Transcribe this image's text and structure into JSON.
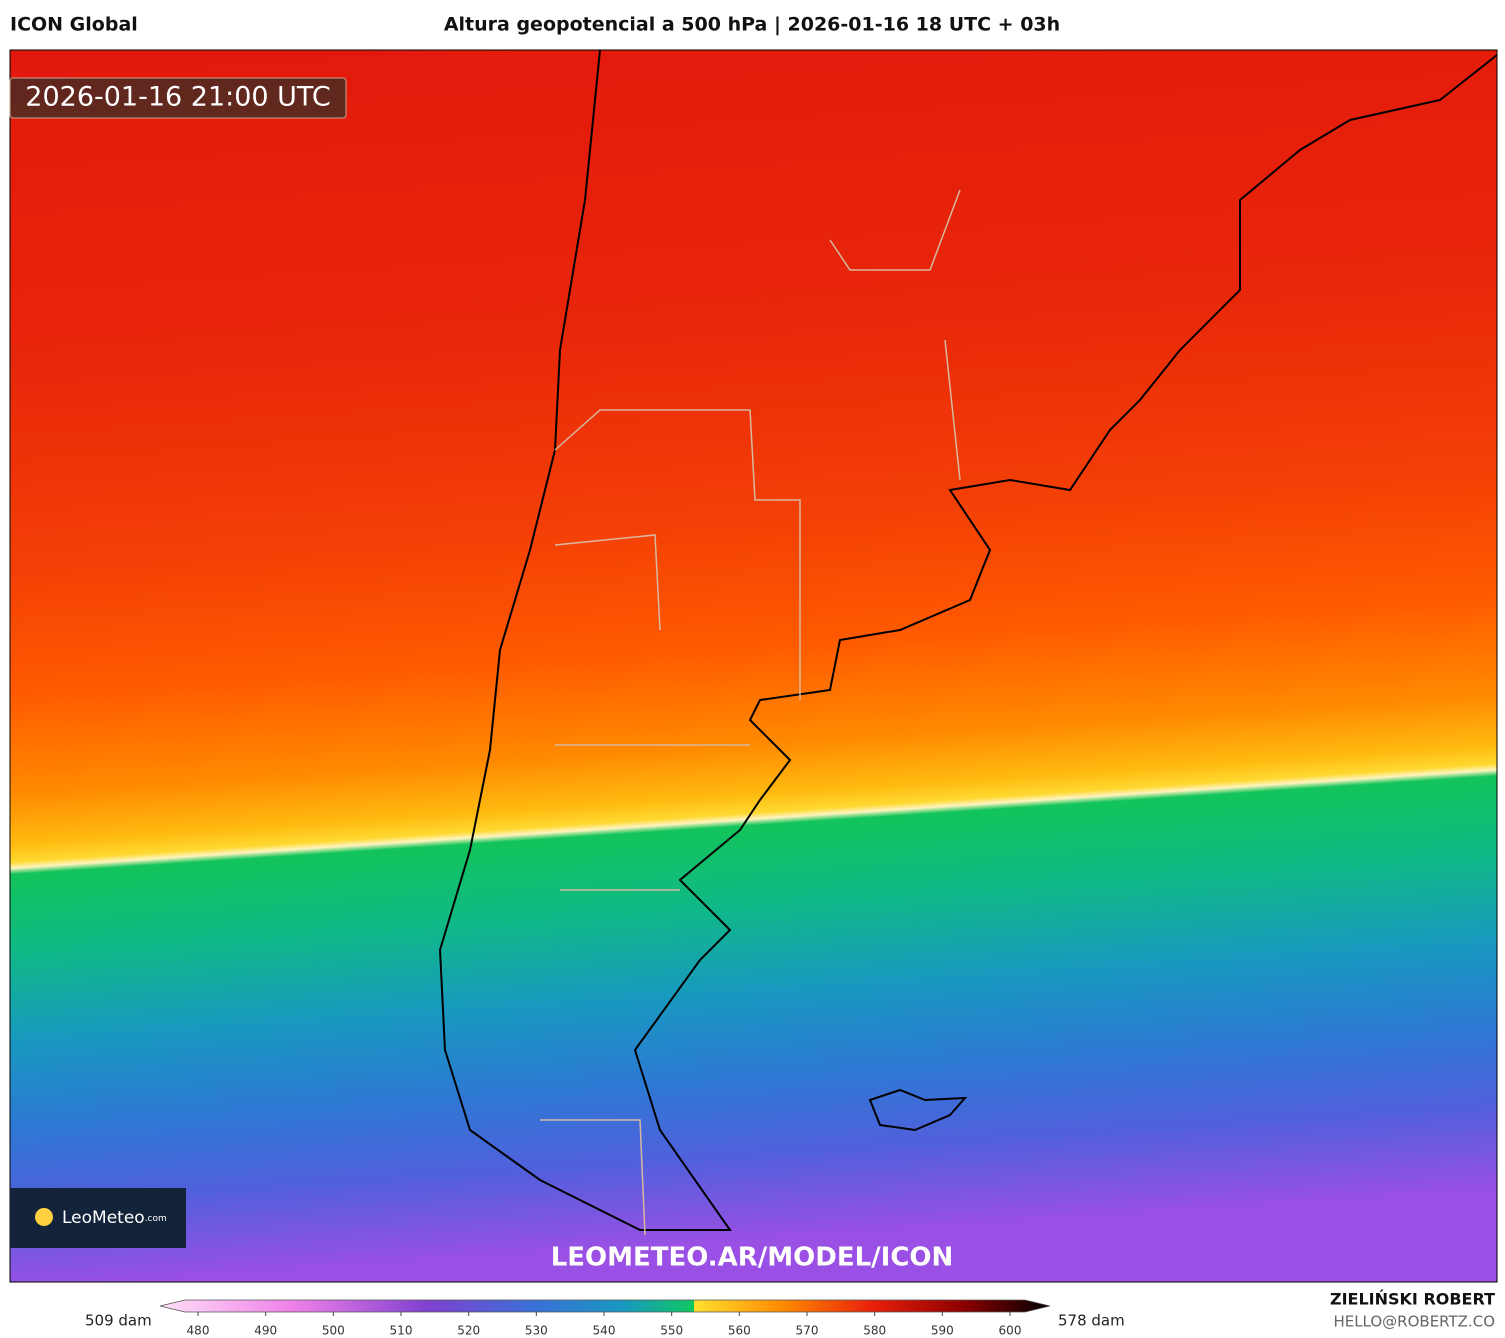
{
  "header": {
    "model": "ICON Global",
    "title": "Altura geopotencial a 500 hPa | 2026-01-16 18 UTC + 03h"
  },
  "map": {
    "valid_time": "2026-01-16 21:00 UTC",
    "watermark": "LEOMETEO.AR/MODEL/ICON",
    "logo": {
      "name": "LeoMeteo",
      "suffix": ".com"
    }
  },
  "colorbar": {
    "min_label": "509 dam",
    "max_label": "578 dam",
    "ticks": [
      480,
      490,
      500,
      510,
      520,
      530,
      540,
      550,
      560,
      570,
      580,
      590,
      600
    ]
  },
  "credits": {
    "author": "ZIELIŃSKI ROBERT",
    "contact": "HELLO@ROBERTZ.CO"
  }
}
